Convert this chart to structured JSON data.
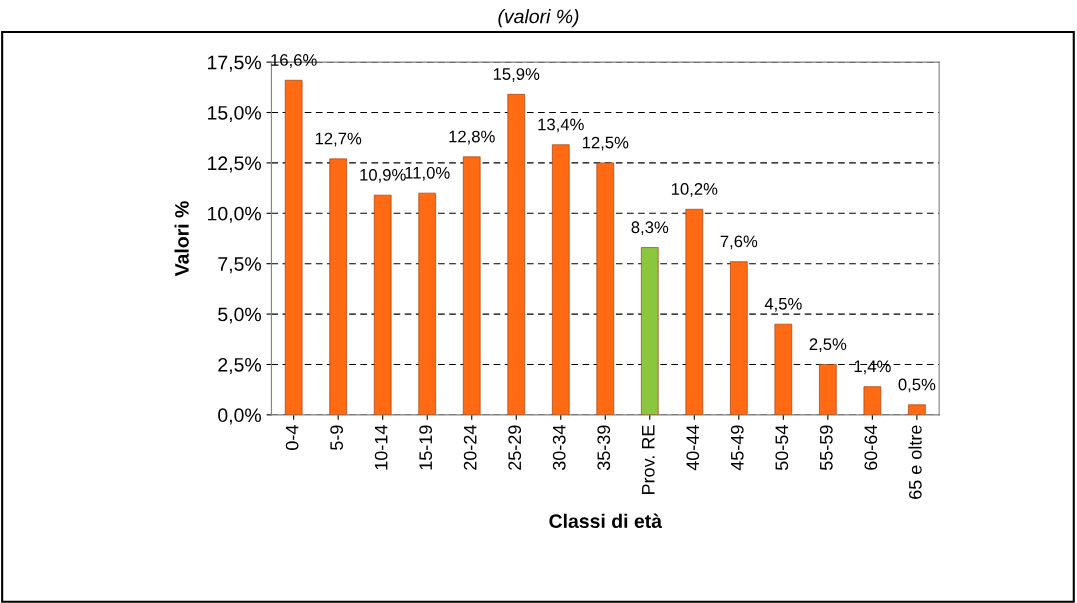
{
  "chart_data": {
    "type": "bar",
    "subtitle": "(valori %)",
    "xlabel": "Classi di età",
    "ylabel": "Valori %",
    "categories": [
      "0-4",
      "5-9",
      "10-14",
      "15-19",
      "20-24",
      "25-29",
      "30-34",
      "35-39",
      "Prov. RE",
      "40-44",
      "45-49",
      "50-54",
      "55-59",
      "60-64",
      "65 e oltre"
    ],
    "values": [
      16.6,
      12.7,
      10.9,
      11.0,
      12.8,
      15.9,
      13.4,
      12.5,
      8.3,
      10.2,
      7.6,
      4.5,
      2.5,
      1.4,
      0.5
    ],
    "colors": [
      "#ff6a13",
      "#ff6a13",
      "#ff6a13",
      "#ff6a13",
      "#ff6a13",
      "#ff6a13",
      "#ff6a13",
      "#ff6a13",
      "#8cc63f",
      "#ff6a13",
      "#ff6a13",
      "#ff6a13",
      "#ff6a13",
      "#ff6a13",
      "#ff6a13"
    ],
    "value_labels": [
      "16,6%",
      "12,7%",
      "10,9%",
      "11,0%",
      "12,8%",
      "15,9%",
      "13,4%",
      "12,5%",
      "8,3%",
      "10,2%",
      "7,6%",
      "4,5%",
      "2,5%",
      "1,4%",
      "0,5%"
    ],
    "ylim": [
      0,
      17.5
    ],
    "yticks": [
      {
        "value": 0,
        "label": "0,0%"
      },
      {
        "value": 2.5,
        "label": "2,5%"
      },
      {
        "value": 5,
        "label": "5,0%"
      },
      {
        "value": 7.5,
        "label": "7,5%"
      },
      {
        "value": 10,
        "label": "10,0%"
      },
      {
        "value": 12.5,
        "label": "12,5%"
      },
      {
        "value": 15,
        "label": "15,0%"
      },
      {
        "value": 17.5,
        "label": "17,5%"
      }
    ],
    "grid": "y",
    "legend": false
  }
}
